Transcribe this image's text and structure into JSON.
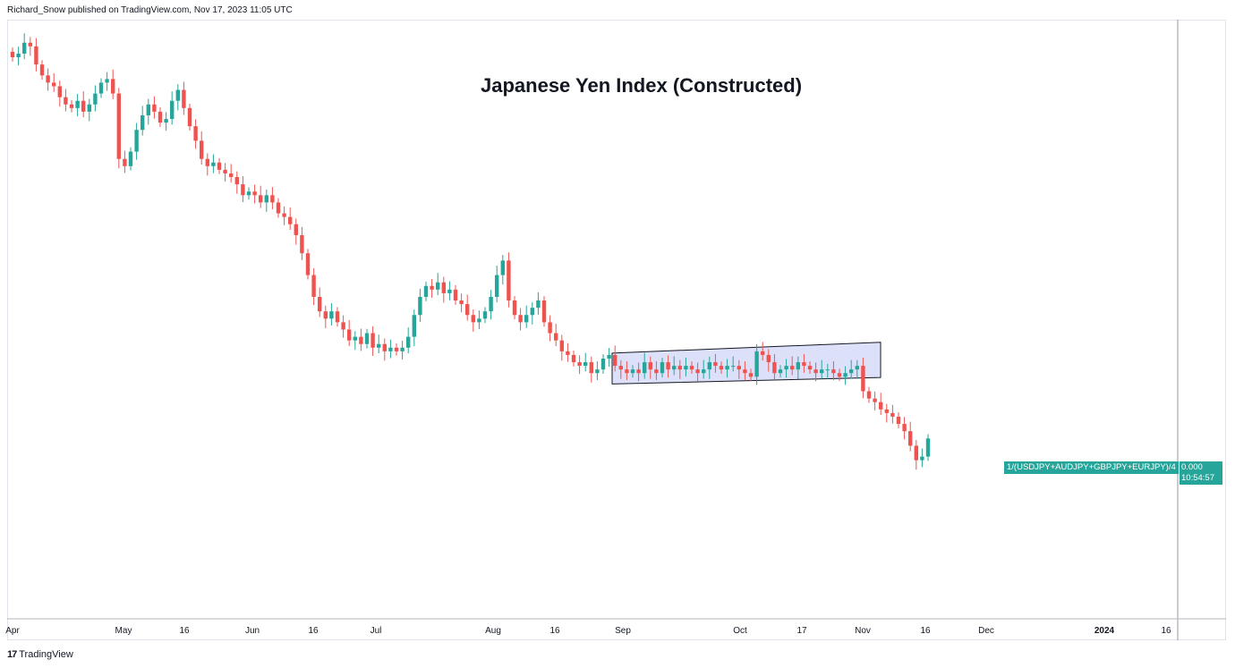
{
  "header": {
    "publish_line": "Richard_Snow published on TradingView.com, Nov 17, 2023 11:05 UTC"
  },
  "footer": {
    "logo_mark": "17",
    "logo_text": "TradingView"
  },
  "colors": {
    "up": "#26a69a",
    "down": "#ef5350",
    "range_fill": "#d6dcf8",
    "range_stroke": "#131722",
    "grid": "#e0e3eb"
  },
  "series_tag": "1/(USDJPY+AUDJPY+GBPJPY+EURJPY)/4",
  "price_tag": {
    "value": "0.000",
    "countdown": "10:54:57"
  },
  "chart_data": {
    "type": "candlestick",
    "title": "Japanese Yen Index (Constructed)",
    "xlabel": "",
    "ylabel": "",
    "grid": false,
    "x_ticks": [
      "Apr",
      "May",
      "16",
      "Jun",
      "16",
      "Jul",
      "Aug",
      "16",
      "Sep",
      "Oct",
      "17",
      "Nov",
      "16",
      "Dec",
      "2024",
      "16"
    ],
    "closes": [
      100,
      101,
      104,
      103,
      98,
      95,
      93,
      92,
      89,
      87,
      86,
      88,
      85,
      87,
      90,
      93,
      94,
      90,
      72,
      70,
      74,
      80,
      84,
      87,
      85,
      82,
      83,
      88,
      91,
      86,
      81,
      77,
      72,
      70,
      71,
      69,
      68,
      67,
      65,
      62,
      63,
      62,
      60,
      62,
      60,
      57,
      56,
      54,
      51,
      46,
      40,
      34,
      30,
      28,
      30,
      27,
      25,
      22,
      23,
      21,
      24,
      20,
      21,
      19,
      20,
      19,
      20,
      23,
      29,
      34,
      37,
      36,
      38,
      35,
      36,
      33,
      32,
      29,
      27,
      28,
      30,
      34,
      40,
      44,
      33,
      29,
      27,
      29,
      31,
      33,
      27,
      24,
      22,
      19,
      18,
      16,
      15,
      16,
      13,
      14,
      17,
      18,
      15,
      14,
      13,
      14,
      13,
      16,
      14,
      13,
      16,
      14,
      15,
      14,
      15,
      14,
      13,
      14,
      16,
      15,
      14,
      15,
      15,
      14,
      13,
      12,
      19,
      18,
      16,
      13,
      14,
      15,
      14,
      16,
      15,
      14,
      13,
      14,
      14,
      13,
      12,
      13,
      14,
      15,
      8,
      6,
      5,
      3,
      2,
      1,
      -1,
      -3,
      -7,
      -11,
      -10,
      -5
    ],
    "range_box": {
      "start_date": "Sep",
      "end_date": "Nov",
      "top_left": 18.5,
      "top_right": 21.5,
      "bottom_left": 10.0,
      "bottom_right": 11.8
    }
  }
}
